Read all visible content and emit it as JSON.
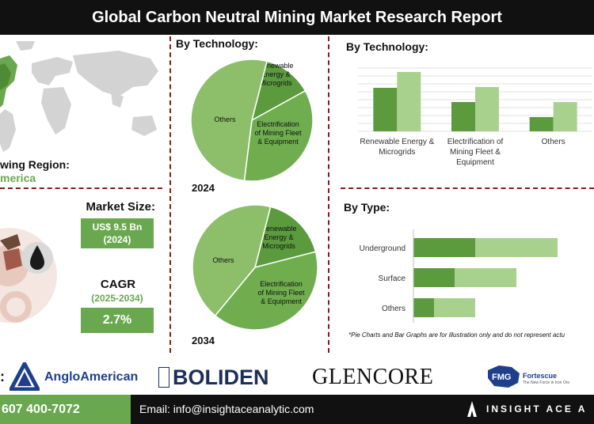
{
  "title": "Global Carbon Neutral Mining Market Research Report",
  "region": {
    "label": "wing Region:",
    "value": "merica"
  },
  "market_size": {
    "label": "Market Size:",
    "value_line1": "US$ 9.5 Bn",
    "value_line2": "(2024)"
  },
  "cagr": {
    "label": "CAGR",
    "years": "(2025-2034)",
    "value": "2.7%"
  },
  "pie_section_label": "By Technology:",
  "bar_section_label": "By Technology:",
  "type_section_label": "By Type:",
  "footnote": "*Pie Charts and Bar Graphs are for illustration only and do not represent actu",
  "logos": {
    "colon": ":",
    "anglo": "AngloAmerican",
    "boliden": "BOLIDEN",
    "glencore": "GLENCORE",
    "fortescue": "Fortescue",
    "fortescue_tagline": "The New Force in Iron Ore"
  },
  "contact": {
    "phone": "607 400-7072",
    "email": "Email: info@insightaceanalytic.com",
    "brand": "INSIGHT ACE A"
  },
  "colors": {
    "dark_green": "#5b9b3e",
    "mid_green": "#6aa84f",
    "light_green": "#a9d18e",
    "pale_green": "#8dbf6a",
    "accent_red": "#8a1a1a"
  },
  "chart_data": [
    {
      "type": "pie",
      "year_label": "2024",
      "slices": [
        {
          "label": [
            "Renewable",
            "Energy &",
            "Microgrids"
          ],
          "value": 13,
          "color": "#5b9b3e"
        },
        {
          "label": [
            "Electrification",
            "of Mining Fleet",
            "& Equipment"
          ],
          "value": 35,
          "color": "#6fad4f"
        },
        {
          "label": [
            "Others"
          ],
          "value": 52,
          "color": "#8dbf6a"
        }
      ]
    },
    {
      "type": "pie",
      "year_label": "2034",
      "slices": [
        {
          "label": [
            "Renewable",
            "Energy &",
            "Microgrids"
          ],
          "value": 17,
          "color": "#5b9b3e"
        },
        {
          "label": [
            "Electrification",
            "of Mining Fleet",
            "& Equipment"
          ],
          "value": 40,
          "color": "#6fad4f"
        },
        {
          "label": [
            "Others"
          ],
          "value": 43,
          "color": "#8dbf6a"
        }
      ]
    },
    {
      "type": "bar",
      "orientation": "vertical",
      "categories": [
        [
          "Renewable Energy &",
          "Microgrids"
        ],
        [
          "Electrification of",
          "Mining Fleet &",
          "Equipment"
        ],
        [
          "Others"
        ]
      ],
      "series": [
        {
          "values": [
            55,
            37,
            18
          ],
          "color": "#5b9b3e"
        },
        {
          "values": [
            75,
            56,
            37
          ],
          "color": "#a9d18e"
        }
      ],
      "ylim": [
        0,
        80
      ],
      "grid": true
    },
    {
      "type": "bar",
      "orientation": "horizontal",
      "stacked": true,
      "categories": [
        "Underground",
        "Surface",
        "Others"
      ],
      "series": [
        {
          "values": [
            30,
            20,
            10
          ],
          "color": "#5b9b3e"
        },
        {
          "values": [
            40,
            30,
            20
          ],
          "color": "#a9d18e"
        }
      ],
      "xlim": [
        0,
        80
      ]
    }
  ]
}
